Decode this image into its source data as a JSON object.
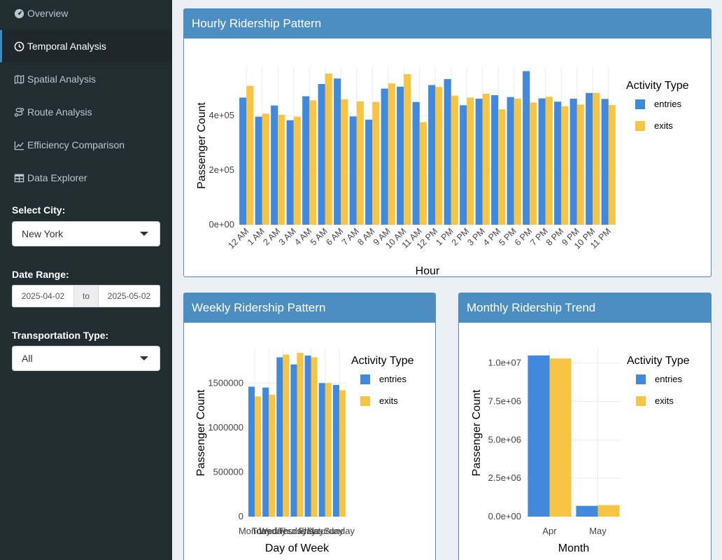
{
  "sidebar": {
    "items": [
      {
        "label": "Overview",
        "icon": "tachometer-icon"
      },
      {
        "label": "Temporal Analysis",
        "icon": "clock-icon"
      },
      {
        "label": "Spatial Analysis",
        "icon": "map-icon"
      },
      {
        "label": "Route Analysis",
        "icon": "route-icon"
      },
      {
        "label": "Efficiency Comparison",
        "icon": "line-chart-icon"
      },
      {
        "label": "Data Explorer",
        "icon": "table-icon"
      }
    ],
    "active_index": 1,
    "city_label": "Select City:",
    "city_value": "New York",
    "date_label": "Date Range:",
    "date_start": "2025-04-02",
    "date_sep": "to",
    "date_end": "2025-05-02",
    "type_label": "Transportation Type:",
    "type_value": "All"
  },
  "colors": {
    "entries": "#4189dd",
    "exits": "#f8c444",
    "header": "#4d8ec2",
    "sidebar": "#222d32"
  },
  "hourly": {
    "title": "Hourly Ridership Pattern"
  },
  "weekly": {
    "title": "Weekly Ridership Pattern"
  },
  "monthly": {
    "title": "Monthly Ridership Trend"
  },
  "chart_data": [
    {
      "type": "bar",
      "title": "Hourly Ridership Pattern",
      "xlabel": "Hour",
      "ylabel": "Passenger Count",
      "ylim": [
        0,
        580000
      ],
      "yticks": [
        0,
        200000,
        400000
      ],
      "ytick_labels": [
        "0e+00",
        "2e+05",
        "4e+05"
      ],
      "categories": [
        "12 AM",
        "1 AM",
        "2 AM",
        "3 AM",
        "4 AM",
        "5 AM",
        "6 AM",
        "7 AM",
        "8 AM",
        "9 AM",
        "10 AM",
        "11 AM",
        "12 PM",
        "1 PM",
        "2 PM",
        "3 PM",
        "4 PM",
        "5 PM",
        "6 PM",
        "7 PM",
        "8 PM",
        "9 PM",
        "10 PM",
        "11 PM"
      ],
      "legend_title": "Activity Type",
      "legend_position": "right",
      "series": [
        {
          "name": "entries",
          "values": [
            466000,
            396000,
            437000,
            383000,
            471000,
            516000,
            536000,
            397000,
            385000,
            499000,
            506000,
            450000,
            512000,
            534000,
            438000,
            462000,
            475000,
            468000,
            563000,
            463000,
            451000,
            462000,
            483000,
            461000
          ]
        },
        {
          "name": "exits",
          "values": [
            509000,
            407000,
            403000,
            396000,
            456000,
            554000,
            460000,
            452000,
            450000,
            518000,
            552000,
            376000,
            505000,
            473000,
            466000,
            480000,
            423000,
            462000,
            448000,
            469000,
            434000,
            441000,
            483000,
            439000
          ]
        }
      ]
    },
    {
      "type": "bar",
      "title": "Weekly Ridership Pattern",
      "xlabel": "Day of Week",
      "ylabel": "Passenger Count",
      "ylim": [
        0,
        1880000
      ],
      "yticks": [
        0,
        500000,
        1000000,
        1500000
      ],
      "ytick_labels": [
        "0",
        "500000",
        "1000000",
        "1500000"
      ],
      "categories": [
        "Monday",
        "Tuesday",
        "Wednesday",
        "Thursday",
        "Friday",
        "Saturday",
        "Sunday"
      ],
      "legend_title": "Activity Type",
      "legend_position": "right",
      "series": [
        {
          "name": "entries",
          "values": [
            1460000,
            1450000,
            1790000,
            1710000,
            1810000,
            1500000,
            1480000
          ]
        },
        {
          "name": "exits",
          "values": [
            1350000,
            1370000,
            1820000,
            1840000,
            1790000,
            1500000,
            1420000
          ]
        }
      ]
    },
    {
      "type": "bar",
      "title": "Monthly Ridership Trend",
      "xlabel": "Month",
      "ylabel": "Passenger Count",
      "ylim": [
        0,
        10900000
      ],
      "yticks": [
        0,
        2500000,
        5000000,
        7500000,
        10000000
      ],
      "ytick_labels": [
        "0.0e+00",
        "2.5e+06",
        "5.0e+06",
        "7.5e+06",
        "1.0e+07"
      ],
      "categories": [
        "Apr",
        "May"
      ],
      "legend_title": "Activity Type",
      "legend_position": "right",
      "series": [
        {
          "name": "entries",
          "values": [
            10500000,
            700000
          ]
        },
        {
          "name": "exits",
          "values": [
            10300000,
            750000
          ]
        }
      ]
    }
  ]
}
